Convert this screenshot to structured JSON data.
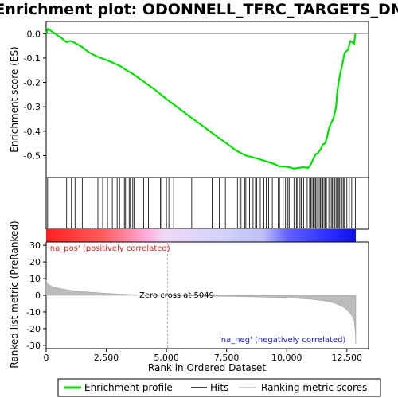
{
  "title": "Enrichment plot: ODONNELL_TFRC_TARGETS_DN",
  "colors": {
    "es_line": "#00dd00",
    "hits": "#000000",
    "metric": "#bbbbbb",
    "pos_bar": "#ff2020",
    "neg_bar": "#2020ff",
    "pos_text": "#d62222",
    "neg_text": "#2020c0",
    "zero_line": "#aaaaaa"
  },
  "legend": {
    "items": [
      {
        "label": "Enrichment profile",
        "color": "#00dd00"
      },
      {
        "label": "Hits",
        "color": "#000000"
      },
      {
        "label": "Ranking metric scores",
        "color": "#bbbbbb"
      }
    ]
  },
  "annotations": {
    "pos_label": "'na_pos' (positively correlated)",
    "neg_label": "'na_neg' (negatively correlated)",
    "zero_cross": "Zero cross at 5049"
  },
  "chart_data": [
    {
      "type": "line",
      "name": "enrichment-profile",
      "ylabel": "Enrichment score (ES)",
      "xlim": [
        0,
        13400
      ],
      "ylim": [
        -0.59,
        0.05
      ],
      "yticks": [
        0.0,
        -0.1,
        -0.2,
        -0.3,
        -0.4,
        -0.5
      ],
      "ytick_labels": [
        "0.0",
        "-0.1",
        "-0.2",
        "-0.3",
        "-0.4",
        "-0.5"
      ],
      "grid": false,
      "x": [
        0,
        80,
        300,
        600,
        850,
        1000,
        1200,
        1500,
        1800,
        2100,
        2500,
        2800,
        3100,
        3300,
        3600,
        4000,
        4500,
        5000,
        5500,
        6000,
        6500,
        7000,
        7500,
        7900,
        8300,
        8700,
        9100,
        9500,
        9700,
        9900,
        10100,
        10300,
        10500,
        10700,
        10900,
        11000,
        11100,
        11200,
        11300,
        11400,
        11500,
        11600,
        11700,
        11750,
        11850,
        11950,
        12050,
        12100,
        12150,
        12200,
        12300,
        12400,
        12550,
        12650,
        12800,
        12850
      ],
      "y": [
        0.0,
        0.02,
        0.005,
        -0.015,
        -0.035,
        -0.03,
        -0.038,
        -0.055,
        -0.078,
        -0.093,
        -0.108,
        -0.12,
        -0.134,
        -0.148,
        -0.165,
        -0.193,
        -0.228,
        -0.268,
        -0.305,
        -0.342,
        -0.378,
        -0.415,
        -0.45,
        -0.48,
        -0.5,
        -0.51,
        -0.522,
        -0.535,
        -0.545,
        -0.545,
        -0.548,
        -0.553,
        -0.55,
        -0.548,
        -0.55,
        -0.535,
        -0.515,
        -0.495,
        -0.49,
        -0.475,
        -0.455,
        -0.45,
        -0.415,
        -0.39,
        -0.365,
        -0.345,
        -0.3,
        -0.24,
        -0.205,
        -0.175,
        -0.13,
        -0.08,
        -0.065,
        -0.03,
        -0.04,
        0.0
      ]
    },
    {
      "type": "scatter",
      "name": "hits",
      "hit_positions": [
        60,
        850,
        1050,
        1200,
        1500,
        1900,
        2150,
        2350,
        2550,
        2750,
        2950,
        3050,
        3250,
        3300,
        3450,
        3500,
        3600,
        3650,
        4050,
        4250,
        4750,
        4800,
        5000,
        5100,
        5300,
        6050,
        6900,
        7200,
        7450,
        7950,
        8050,
        8100,
        8250,
        8300,
        8450,
        8600,
        8700,
        8750,
        8850,
        8900,
        9050,
        9150,
        9250,
        9400,
        9650,
        9700,
        9850,
        9950,
        10050,
        10100,
        10300,
        10400,
        10450,
        10550,
        10600,
        10700,
        10800,
        10850,
        10950,
        11000,
        11050,
        11100,
        11150,
        11200,
        11250,
        11350,
        11400,
        11450,
        11500,
        11550,
        11600,
        11650,
        11750,
        11800,
        11850,
        11900,
        11950,
        12000,
        12050,
        12100,
        12150,
        12200,
        12250,
        12300,
        12350,
        12400,
        12500,
        12600,
        12700,
        12850
      ]
    },
    {
      "type": "area",
      "name": "ranking-metric",
      "xlabel": "Rank in Ordered Dataset",
      "ylabel": "Ranked list metric (PreRanked)",
      "xlim": [
        0,
        13400
      ],
      "ylim": [
        -32,
        32
      ],
      "xticks": [
        0,
        2500,
        5000,
        7500,
        10000,
        12500
      ],
      "xtick_labels": [
        "0",
        "2,500",
        "5,000",
        "7,500",
        "10,000",
        "12,500"
      ],
      "yticks": [
        30,
        20,
        10,
        0,
        -10,
        -20,
        -30
      ],
      "ytick_labels": [
        "30",
        "20",
        "10",
        "0",
        "-10",
        "-20",
        "-30"
      ],
      "zero_cross": 5049,
      "x": [
        0,
        50,
        150,
        300,
        600,
        1000,
        1500,
        2000,
        2500,
        3000,
        3500,
        4000,
        4500,
        5049,
        5500,
        6500,
        7500,
        8500,
        9500,
        10000,
        10500,
        11000,
        11500,
        11800,
        12000,
        12200,
        12400,
        12550,
        12700,
        12800,
        12850,
        12870
      ],
      "y": [
        9,
        7,
        6,
        5,
        4,
        3,
        2.3,
        1.7,
        1.2,
        0.8,
        0.5,
        0.3,
        0.15,
        0,
        -0.2,
        -0.4,
        -0.6,
        -0.9,
        -1.2,
        -1.5,
        -1.9,
        -2.4,
        -3.2,
        -4,
        -4.8,
        -6,
        -7.5,
        -9.5,
        -12,
        -15,
        -22,
        -29
      ]
    }
  ]
}
